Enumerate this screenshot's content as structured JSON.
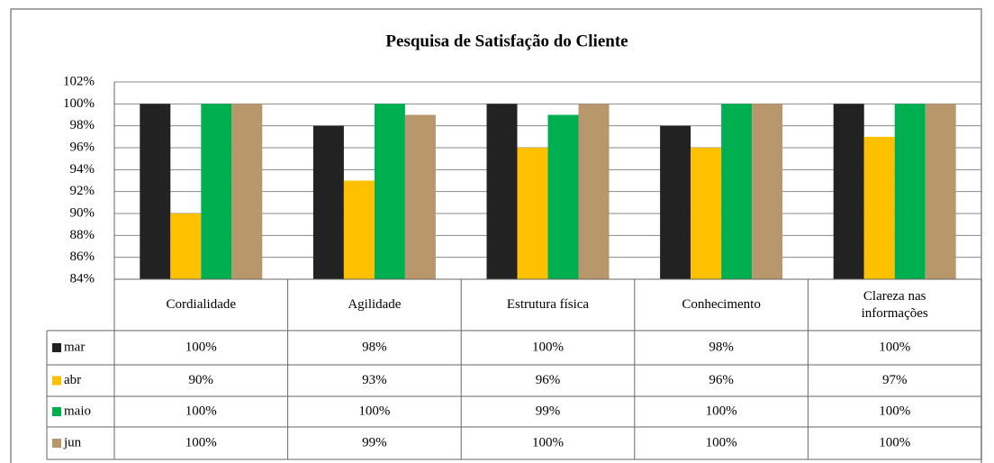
{
  "chart_data": {
    "type": "bar",
    "title": "Pesquisa de Satisfação do Cliente",
    "categories": [
      "Cordialidade",
      "Agilidade",
      "Estrutura física",
      "Conhecimento",
      "Clareza nas informações"
    ],
    "series": [
      {
        "name": "mar",
        "color": "#222222",
        "values": [
          100,
          98,
          100,
          98,
          100
        ],
        "value_labels": [
          "100%",
          "98%",
          "100%",
          "98%",
          "100%"
        ]
      },
      {
        "name": "abr",
        "color": "#ffc000",
        "values": [
          90,
          93,
          96,
          96,
          97
        ],
        "value_labels": [
          "90%",
          "93%",
          "96%",
          "96%",
          "97%"
        ]
      },
      {
        "name": "maio",
        "color": "#00b050",
        "values": [
          100,
          100,
          99,
          100,
          100
        ],
        "value_labels": [
          "100%",
          "100%",
          "99%",
          "100%",
          "100%"
        ]
      },
      {
        "name": "jun",
        "color": "#b8976d",
        "values": [
          100,
          99,
          100,
          100,
          100
        ],
        "value_labels": [
          "100%",
          "99%",
          "100%",
          "100%",
          "100%"
        ]
      }
    ],
    "ylim": [
      84,
      102
    ],
    "yticks": [
      {
        "value": 84,
        "label": "84%"
      },
      {
        "value": 86,
        "label": "86%"
      },
      {
        "value": 88,
        "label": "88%"
      },
      {
        "value": 90,
        "label": "90%"
      },
      {
        "value": 92,
        "label": "92%"
      },
      {
        "value": 94,
        "label": "94%"
      },
      {
        "value": 96,
        "label": "96%"
      },
      {
        "value": 98,
        "label": "98%"
      },
      {
        "value": 100,
        "label": "100%"
      },
      {
        "value": 102,
        "label": "102%"
      }
    ],
    "grid": true,
    "legend": "table"
  }
}
